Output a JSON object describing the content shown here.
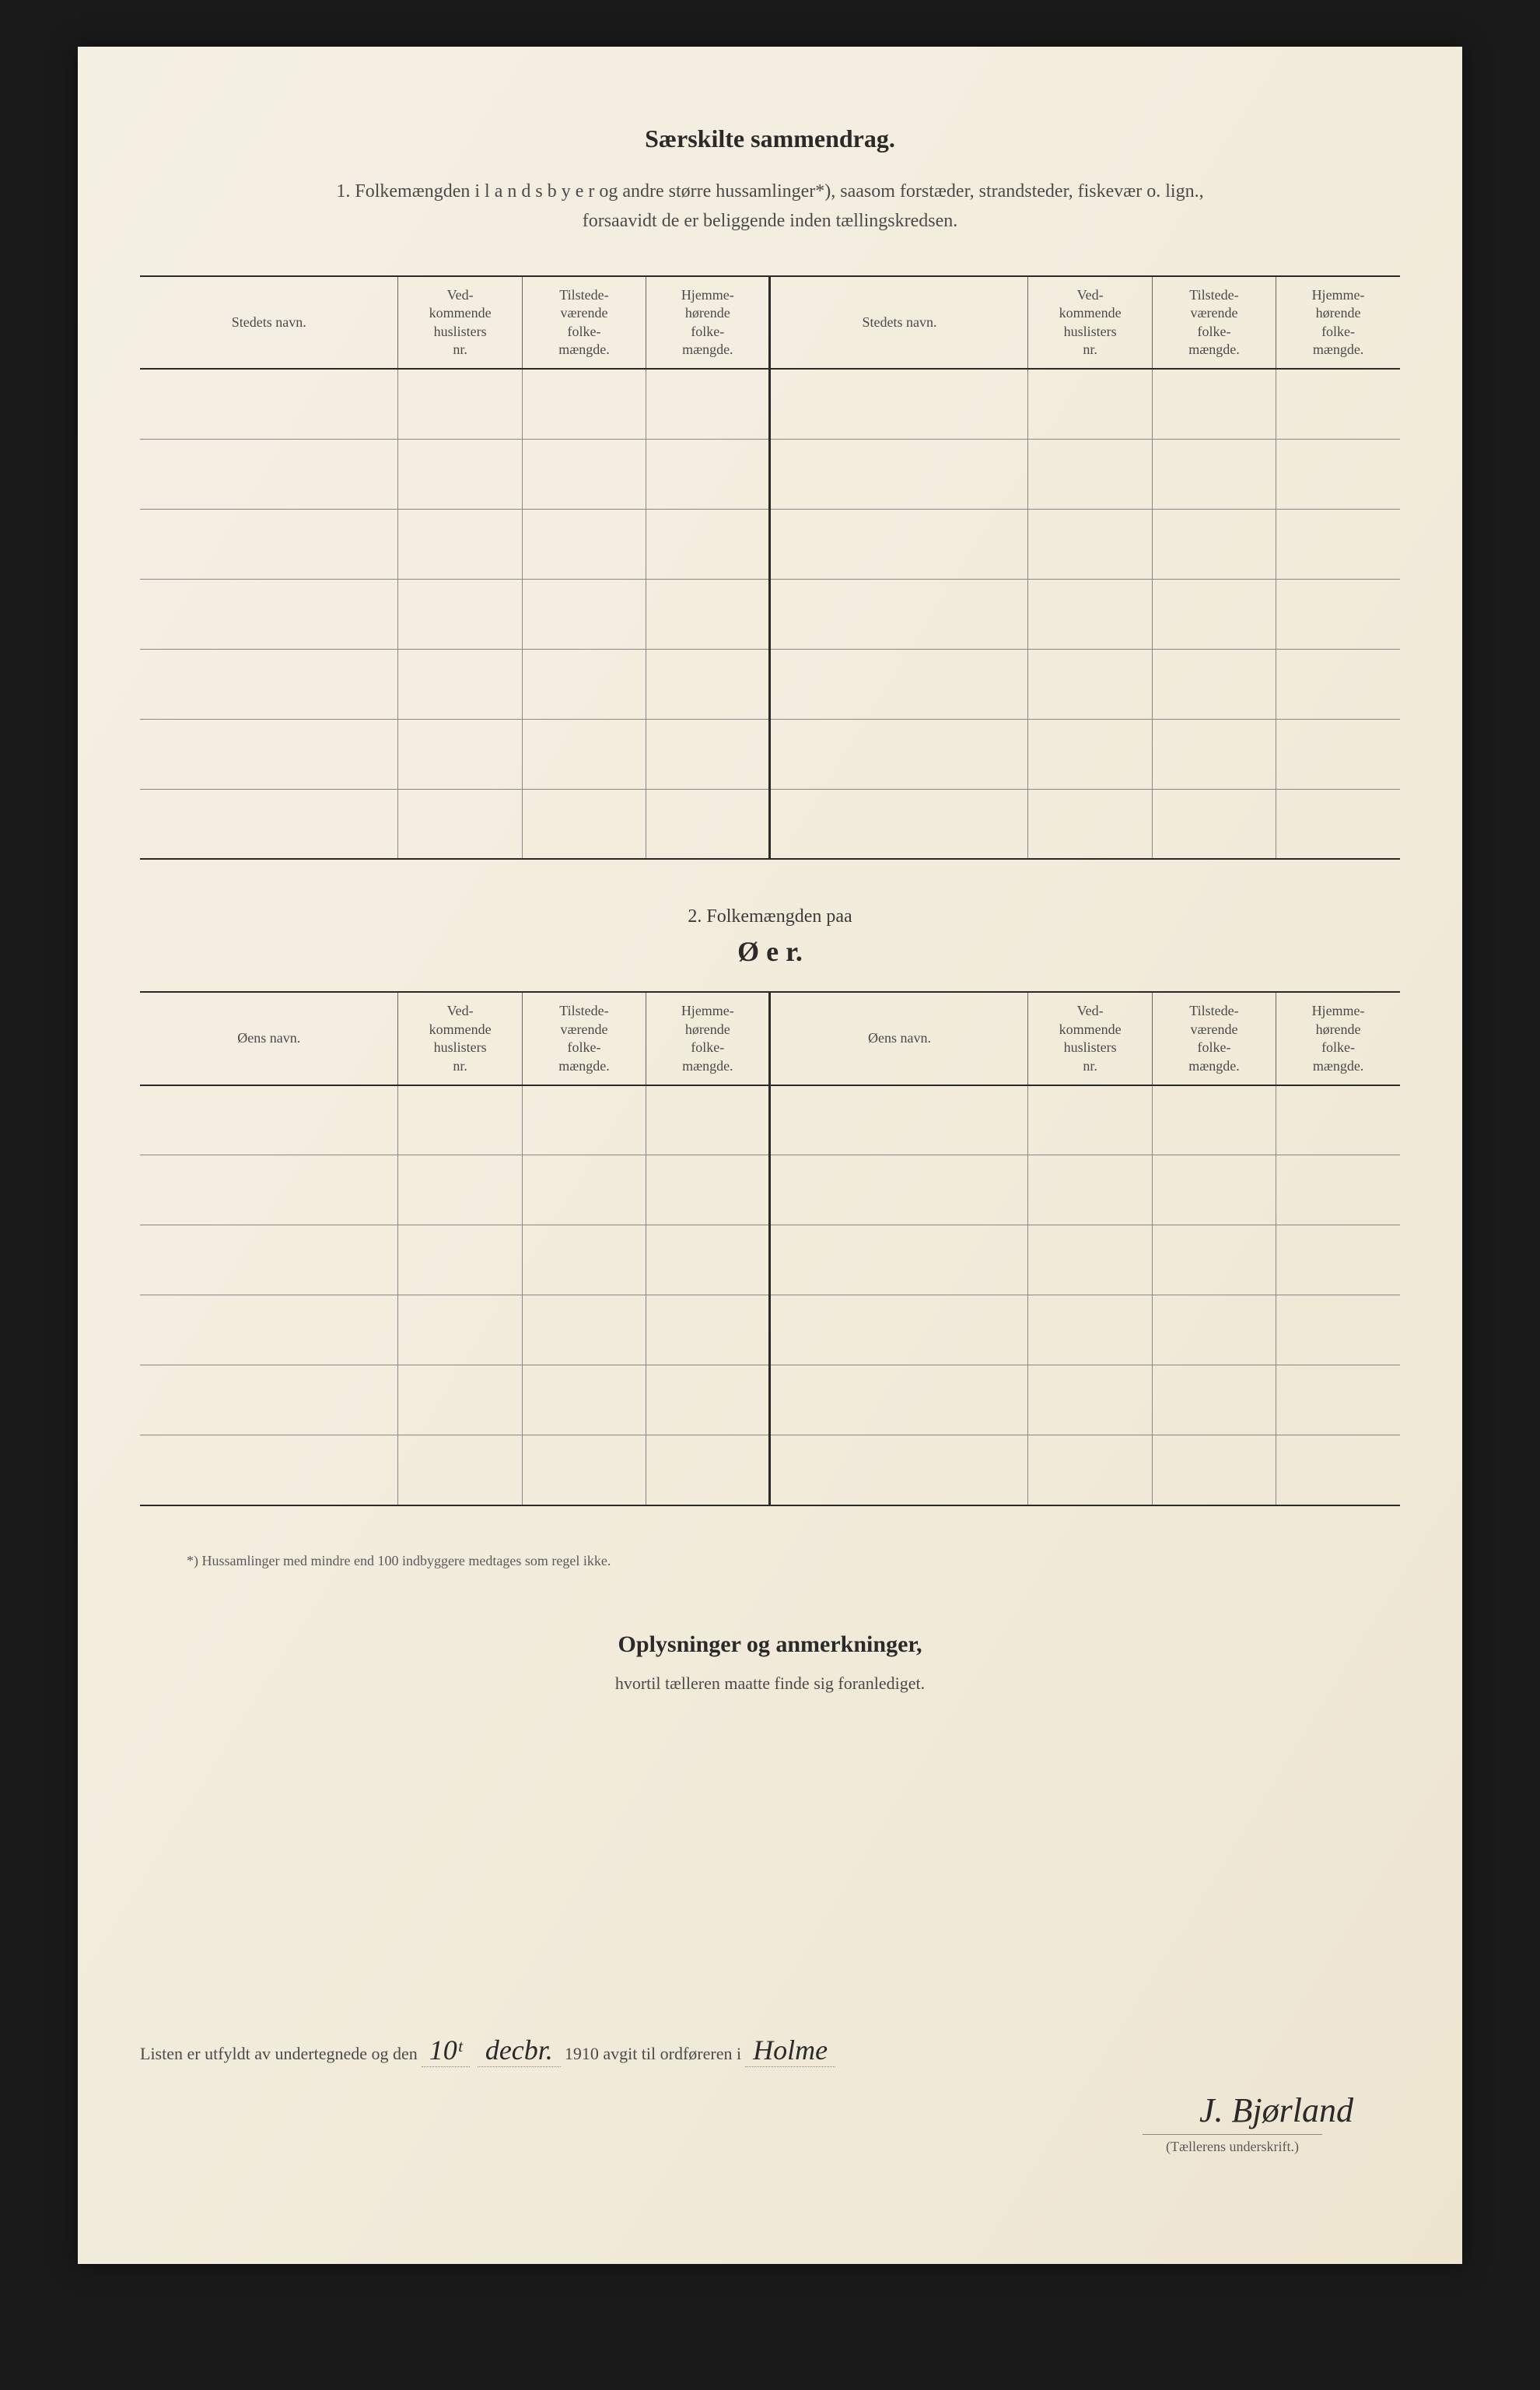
{
  "section1": {
    "title": "Særskilte sammendrag.",
    "description_line1": "1.  Folkemængden i l a n d s b y e r og andre større hussamlinger*), saasom forstæder, strandsteder, fiskevær o. lign.,",
    "description_line2": "forsaavidt de er beliggende inden tællingskredsen.",
    "columns": {
      "name": "Stedets navn.",
      "vedkommende": "Ved-\nkommende\nhuslisters\nnr.",
      "tilstede": "Tilstede-\nværende\nfolke-\nmængde.",
      "hjemme": "Hjemme-\nhørende\nfolke-\nmængde."
    },
    "row_count": 7
  },
  "section2": {
    "label": "2.  Folkemængden paa",
    "title": "Ø e r.",
    "columns": {
      "name": "Øens navn.",
      "vedkommende": "Ved-\nkommende\nhuslisters\nnr.",
      "tilstede": "Tilstede-\nværende\nfolke-\nmængde.",
      "hjemme": "Hjemme-\nhørende\nfolke-\nmængde."
    },
    "row_count": 6
  },
  "footnote": "*) Hussamlinger med mindre end 100 indbyggere medtages som regel ikke.",
  "section3": {
    "title": "Oplysninger og anmerkninger,",
    "subtitle": "hvortil tælleren maatte finde sig foranlediget."
  },
  "signature": {
    "text_prefix": "Listen er utfyldt av undertegnede og den",
    "date_day": "10ᵗ",
    "date_month": "decbr.",
    "date_year": "1910",
    "text_middle": "avgit til ordføreren i",
    "place": "Holme",
    "name": "J. Bjørland",
    "caption": "(Tællerens underskrift.)"
  },
  "colors": {
    "page_bg": "#f5f0e4",
    "body_bg": "#1a1a1a",
    "text_primary": "#2a2a2a",
    "text_secondary": "#4a4a4a",
    "border_heavy": "#2a2a2a",
    "border_light": "#888"
  },
  "typography": {
    "title_fontsize": 32,
    "body_fontsize": 24,
    "header_fontsize": 18,
    "handwritten_fontsize": 36
  }
}
